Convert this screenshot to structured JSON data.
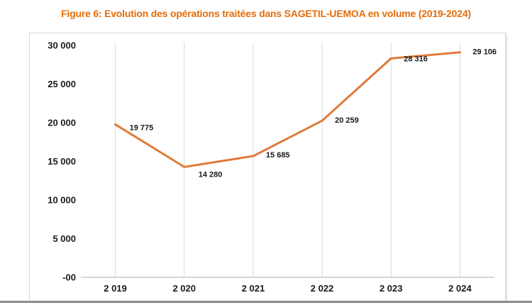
{
  "chart_data": {
    "type": "line",
    "title": "Figure 6: Evolution des opérations traitées dans SAGETIL-UEMOA en volume (2019-2024)",
    "categories": [
      "2 019",
      "2 020",
      "2 021",
      "2 022",
      "2 023",
      "2 024"
    ],
    "series": [
      {
        "name": "Volume",
        "values": [
          19775,
          14280,
          15685,
          20259,
          28316,
          29106
        ],
        "labels": [
          "19 775",
          "14 280",
          "15 685",
          "20 259",
          "28 316",
          "29 106"
        ]
      }
    ],
    "y_ticks": [
      0,
      5000,
      10000,
      15000,
      20000,
      25000,
      30000
    ],
    "y_tick_labels": [
      "-00",
      "5 000",
      "10 000",
      "15 000",
      "20 000",
      "25 000",
      "30 000"
    ],
    "ylim": [
      0,
      30000
    ],
    "xlabel": "",
    "ylabel": "",
    "grid": "vertical",
    "colors": {
      "line": "#e07b39",
      "title": "#e46c0a",
      "grid": "#d9d9d9",
      "axis": "#bfbfbf"
    }
  }
}
